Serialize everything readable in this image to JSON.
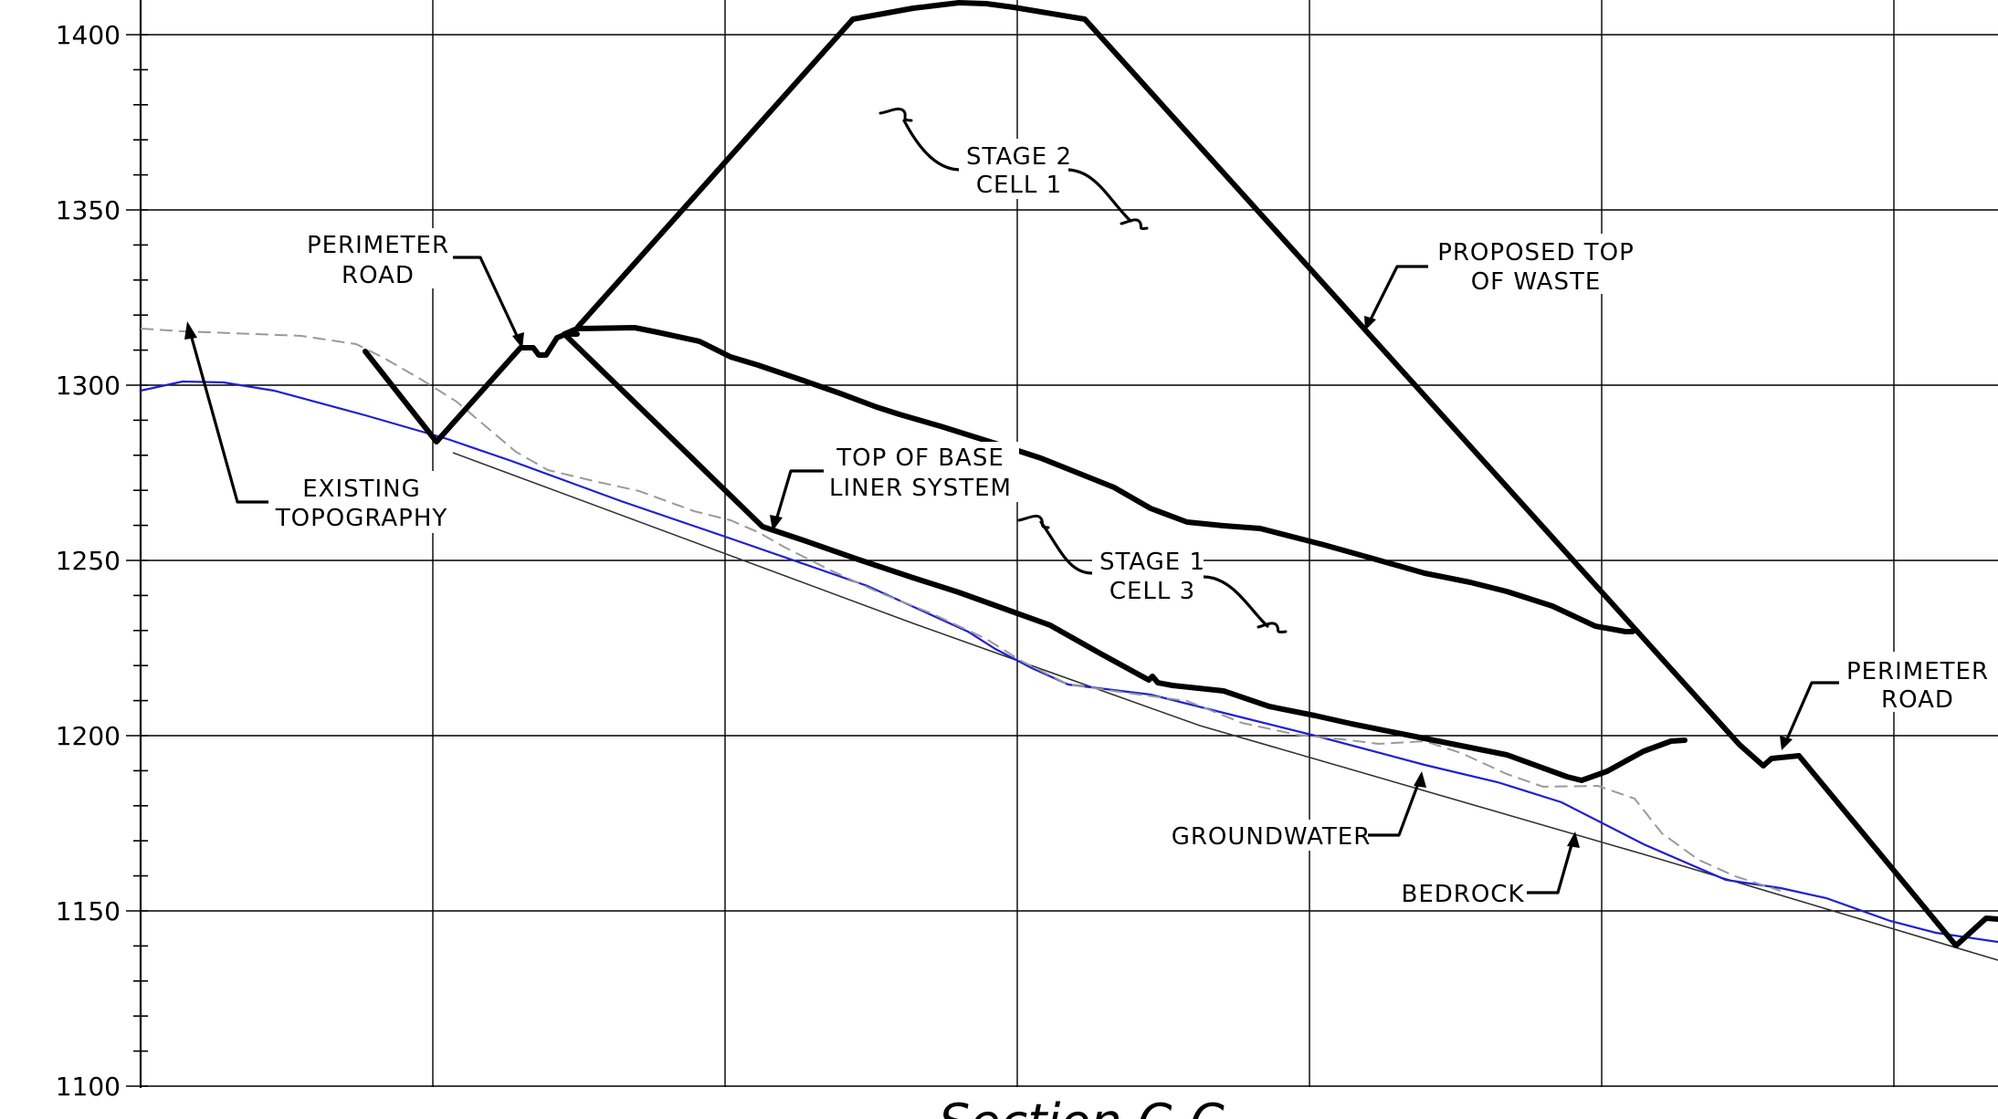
{
  "drawing": {
    "y_axis": {
      "ticks": [
        1100,
        1150,
        1200,
        1250,
        1300,
        1350,
        1400
      ],
      "range": [
        1100,
        1410
      ]
    },
    "labels": {
      "perimeter_road_left": [
        "PERIMETER",
        "ROAD"
      ],
      "stage2_cell1": [
        "STAGE 2",
        "CELL 1"
      ],
      "proposed_top_of_waste": [
        "PROPOSED TOP",
        "OF WASTE"
      ],
      "existing_topography": [
        "EXISTING",
        "TOPOGRAPHY"
      ],
      "top_of_base_liner": [
        "TOP OF BASE",
        "LINER SYSTEM"
      ],
      "stage1_cell3": [
        "STAGE 1",
        "CELL 3"
      ],
      "perimeter_road_right": [
        "PERIMETER",
        "ROAD"
      ],
      "groundwater": "GROUNDWATER",
      "bedrock": "BEDROCK"
    },
    "title_partial": "Section C-C",
    "colors": {
      "groundwater": "#1f1fd6",
      "existing_topography": "#9a9a9a",
      "linework": "#000000"
    }
  }
}
